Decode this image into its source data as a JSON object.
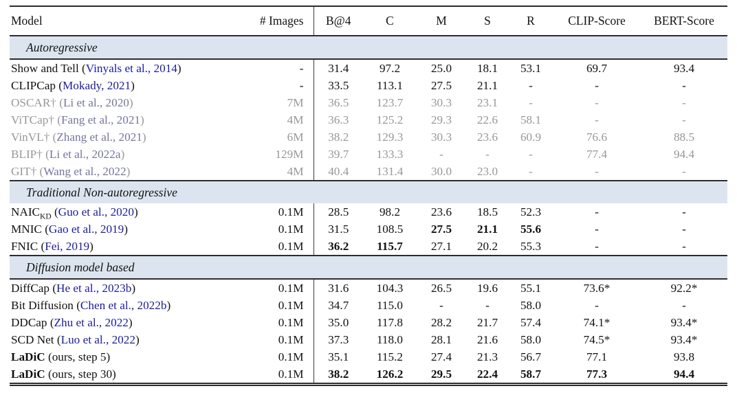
{
  "table": {
    "columns": [
      "Model",
      "# Images",
      "B@4",
      "C",
      "M",
      "S",
      "R",
      "CLIP-Score",
      "BERT-Score"
    ],
    "colors": {
      "citation": "#1b1b9e",
      "muted_text": "#979797",
      "muted_citation": "#75759f",
      "band_background": "#dce5ef",
      "rule": "#2c2c2c"
    },
    "sections": [
      {
        "label": "Autoregressive",
        "rule_below_band": true,
        "rows": [
          {
            "name": "Show and Tell",
            "cite": "(Vinyals et al., 2014)",
            "muted": false,
            "images": "-",
            "vals": [
              "31.4",
              "97.2",
              "25.0",
              "18.1",
              "53.1",
              "69.7",
              "93.4"
            ],
            "bold": [
              0,
              0,
              0,
              0,
              0,
              0,
              0
            ]
          },
          {
            "name": "CLIPCap",
            "cite": "(Mokady, 2021)",
            "muted": false,
            "images": "-",
            "vals": [
              "33.5",
              "113.1",
              "27.5",
              "21.1",
              "-",
              "-",
              "-"
            ],
            "bold": [
              0,
              0,
              0,
              0,
              0,
              0,
              0
            ]
          },
          {
            "name": "OSCAR†",
            "cite": "(Li et al., 2020)",
            "muted": true,
            "images": "7M",
            "vals": [
              "36.5",
              "123.7",
              "30.3",
              "23.1",
              "-",
              "-",
              "-"
            ],
            "bold": [
              0,
              0,
              0,
              0,
              0,
              0,
              0
            ]
          },
          {
            "name": "ViTCap†",
            "cite": "(Fang et al., 2021)",
            "muted": true,
            "images": "4M",
            "vals": [
              "36.3",
              "125.2",
              "29.3",
              "22.6",
              "58.1",
              "-",
              "-"
            ],
            "bold": [
              0,
              0,
              0,
              0,
              0,
              0,
              0
            ]
          },
          {
            "name": "VinVL†",
            "cite": "(Zhang et al., 2021)",
            "muted": true,
            "images": "6M",
            "vals": [
              "38.2",
              "129.3",
              "30.3",
              "23.6",
              "60.9",
              "76.6",
              "88.5"
            ],
            "bold": [
              0,
              0,
              0,
              0,
              0,
              0,
              0
            ]
          },
          {
            "name": "BLIP†",
            "cite": "(Li et al., 2022a)",
            "muted": true,
            "images": "129M",
            "vals": [
              "39.7",
              "133.3",
              "-",
              "-",
              "-",
              "77.4",
              "94.4"
            ],
            "bold": [
              0,
              0,
              0,
              0,
              0,
              0,
              0
            ]
          },
          {
            "name": "GIT†",
            "cite": "(Wang et al., 2022)",
            "muted": true,
            "images": "4M",
            "vals": [
              "40.4",
              "131.4",
              "30.0",
              "23.0",
              "-",
              "-",
              "-"
            ],
            "bold": [
              0,
              0,
              0,
              0,
              0,
              0,
              0
            ]
          }
        ]
      },
      {
        "label": "Traditional Non-autoregressive",
        "rule_below_band": false,
        "rows": [
          {
            "name": "NAIC",
            "sub": "KD",
            "cite": "(Guo et al., 2020)",
            "muted": false,
            "images": "0.1M",
            "vals": [
              "28.5",
              "98.2",
              "23.6",
              "18.5",
              "52.3",
              "-",
              "-"
            ],
            "bold": [
              0,
              0,
              0,
              0,
              0,
              0,
              0
            ]
          },
          {
            "name": "MNIC",
            "cite": "(Gao et al., 2019)",
            "muted": false,
            "images": "0.1M",
            "vals": [
              "31.5",
              "108.5",
              "27.5",
              "21.1",
              "55.6",
              "-",
              "-"
            ],
            "bold": [
              0,
              0,
              1,
              1,
              1,
              0,
              0
            ]
          },
          {
            "name": "FNIC",
            "cite": "(Fei, 2019)",
            "muted": false,
            "images": "0.1M",
            "vals": [
              "36.2",
              "115.7",
              "27.1",
              "20.2",
              "55.3",
              "-",
              "-"
            ],
            "bold": [
              1,
              1,
              0,
              0,
              0,
              0,
              0
            ]
          }
        ]
      },
      {
        "label": "Diffusion model based",
        "rule_below_band": true,
        "rows": [
          {
            "name": "DiffCap",
            "cite": "(He et al., 2023b)",
            "muted": false,
            "images": "0.1M",
            "vals": [
              "31.6",
              "104.3",
              "26.5",
              "19.6",
              "55.1",
              "73.6*",
              "92.2*"
            ],
            "bold": [
              0,
              0,
              0,
              0,
              0,
              0,
              0
            ]
          },
          {
            "name": "Bit Diffusion",
            "cite": "(Chen et al., 2022b)",
            "muted": false,
            "images": "0.1M",
            "vals": [
              "34.7",
              "115.0",
              "-",
              "-",
              "58.0",
              "-",
              "-"
            ],
            "bold": [
              0,
              0,
              0,
              0,
              0,
              0,
              0
            ]
          },
          {
            "name": "DDCap",
            "cite": "(Zhu et al., 2022)",
            "muted": false,
            "images": "0.1M",
            "vals": [
              "35.0",
              "117.8",
              "28.2",
              "21.7",
              "57.4",
              "74.1*",
              "93.4*"
            ],
            "bold": [
              0,
              0,
              0,
              0,
              0,
              0,
              0
            ]
          },
          {
            "name": "SCD Net",
            "cite": "(Luo et al., 2022)",
            "muted": false,
            "images": "0.1M",
            "vals": [
              "37.3",
              "118.0",
              "28.1",
              "21.6",
              "58.0",
              "74.5*",
              "93.4*"
            ],
            "bold": [
              0,
              0,
              0,
              0,
              0,
              0,
              0
            ]
          },
          {
            "name": "LaDiC",
            "bold_name": true,
            "rest": " (ours, step 5)",
            "muted": false,
            "images": "0.1M",
            "vals": [
              "35.1",
              "115.2",
              "27.4",
              "21.3",
              "56.7",
              "77.1",
              "93.8"
            ],
            "bold": [
              0,
              0,
              0,
              0,
              0,
              0,
              0
            ]
          },
          {
            "name": "LaDiC",
            "bold_name": true,
            "rest": " (ours, step 30)",
            "muted": false,
            "images": "0.1M",
            "vals": [
              "38.2",
              "126.2",
              "29.5",
              "22.4",
              "58.7",
              "77.3",
              "94.4"
            ],
            "bold": [
              1,
              1,
              1,
              1,
              1,
              1,
              1
            ]
          }
        ]
      }
    ]
  }
}
